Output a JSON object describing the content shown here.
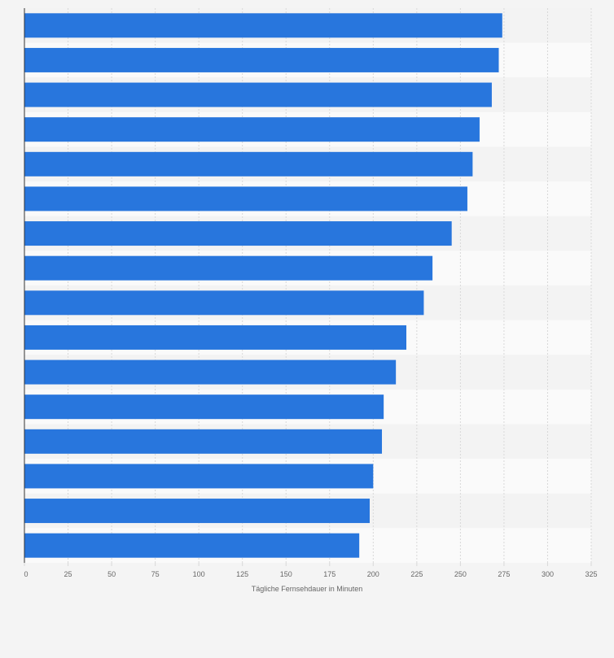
{
  "chart_data": {
    "type": "bar",
    "orientation": "horizontal",
    "title": "",
    "xlabel": "Tägliche Fernsehdauer in Minuten",
    "ylabel": "",
    "categories": [
      "",
      "",
      "",
      "",
      "",
      "",
      "",
      "",
      "",
      "",
      "",
      "",
      "",
      "",
      "",
      ""
    ],
    "values": [
      274,
      272,
      268,
      261,
      257,
      254,
      245,
      234,
      229,
      219,
      213,
      206,
      205,
      200,
      198,
      192
    ],
    "xlim": [
      0,
      325
    ],
    "x_ticks": [
      0,
      25,
      50,
      75,
      100,
      125,
      150,
      175,
      200,
      225,
      250,
      275,
      300,
      325
    ],
    "x_tick_labels": [
      "0",
      "25",
      "50",
      "75",
      "100",
      "125",
      "150",
      "175",
      "200",
      "225",
      "250",
      "275",
      "300",
      "325"
    ],
    "grid": true,
    "legend": "none"
  },
  "colors": {
    "bar": "#2876dd",
    "background": "#f4f4f4",
    "band_light": "#fafafa",
    "band_dark": "#f3f3f3",
    "grid": "#d8d8d8",
    "axis": "#333333"
  }
}
